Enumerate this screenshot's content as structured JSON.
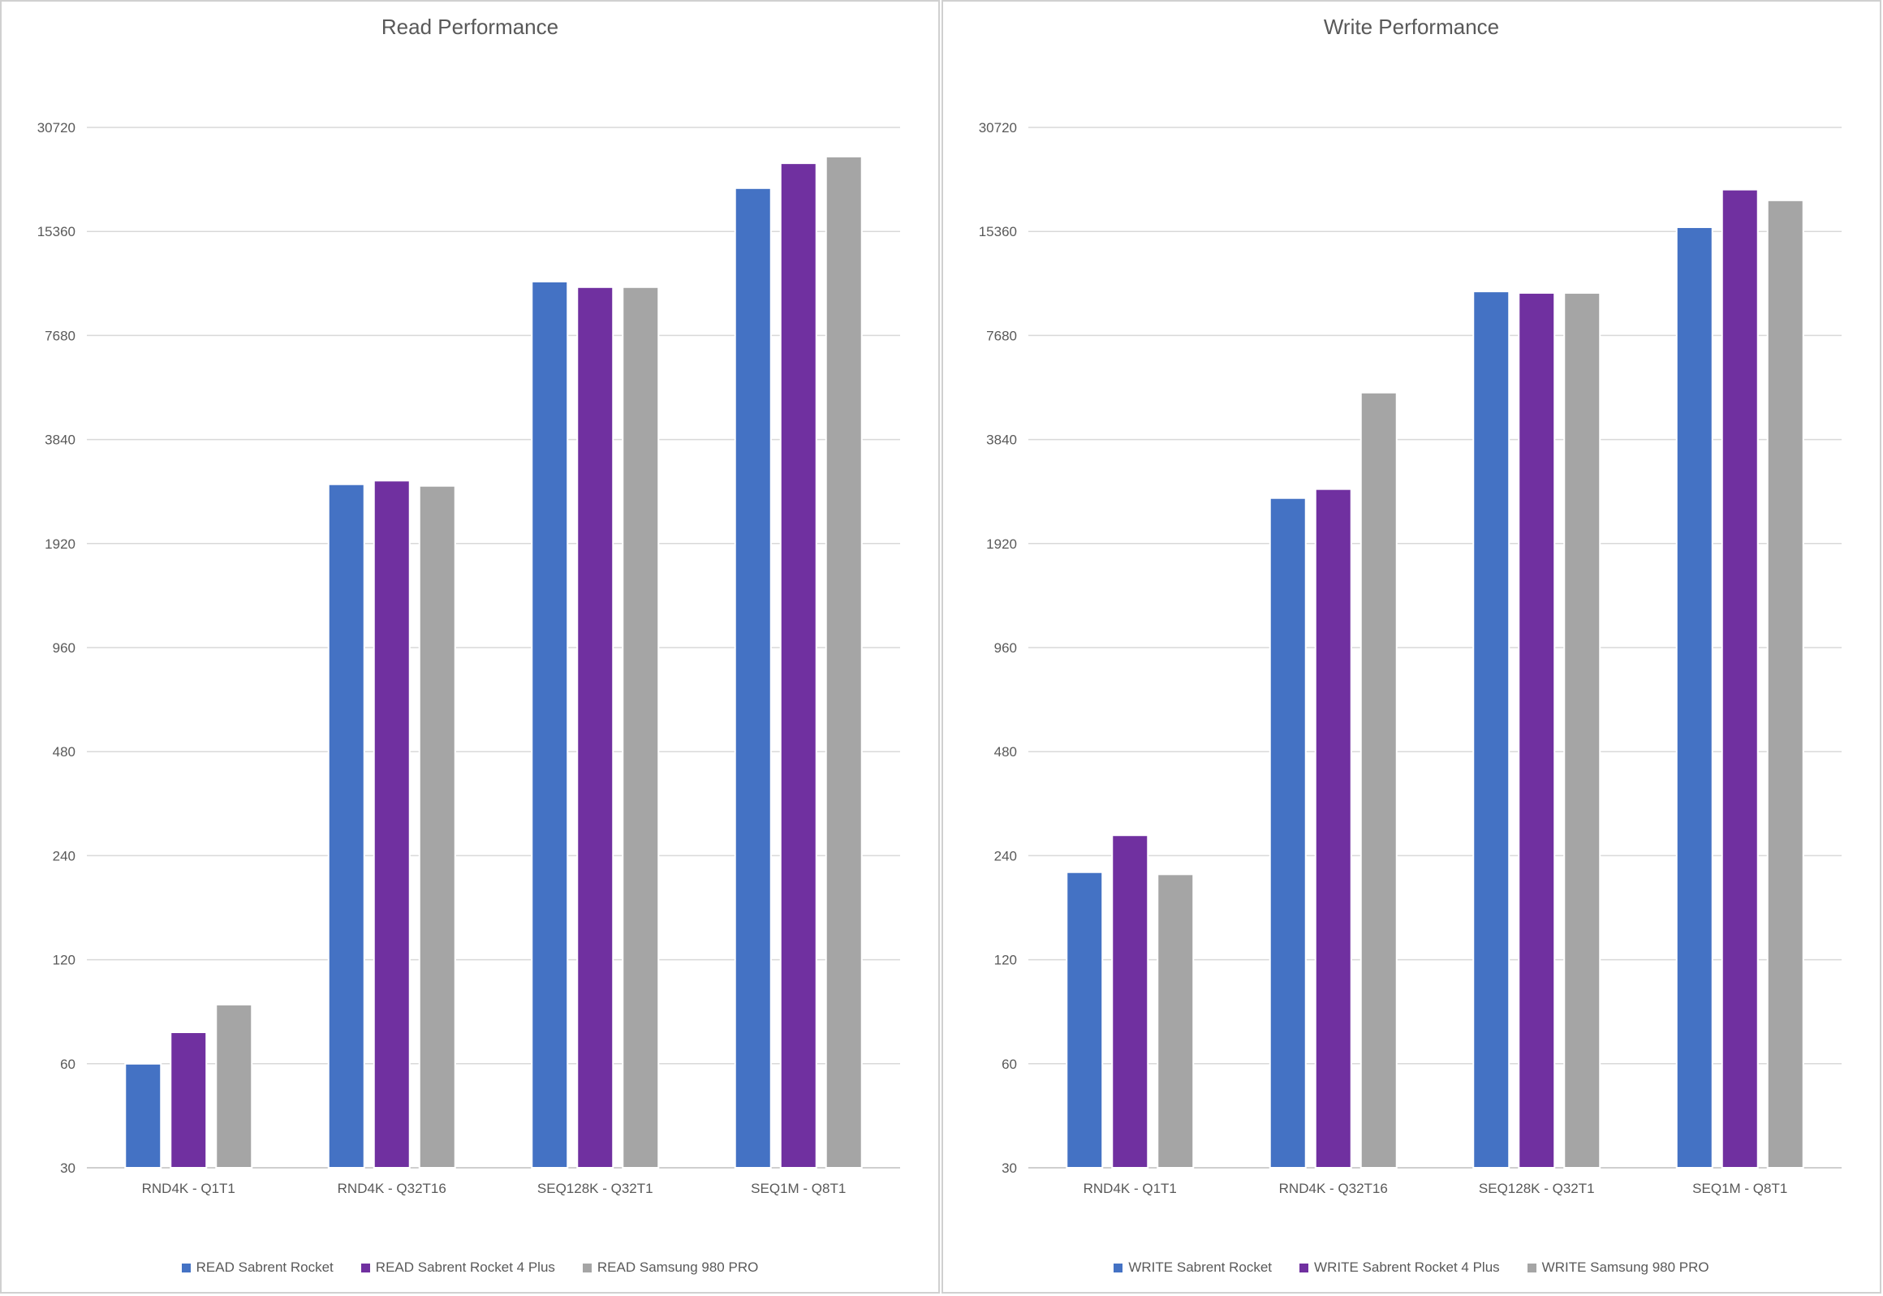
{
  "colors": {
    "blue": "#4472c4",
    "purple": "#7030a0",
    "gray": "#a5a5a5"
  },
  "chart_data": [
    {
      "type": "bar",
      "title": "Read Performance",
      "y_scale": "log2",
      "ylim": [
        30,
        30720
      ],
      "y_ticks": [
        "30720",
        "15360",
        "7680",
        "3840",
        "1920",
        "960",
        "480",
        "240",
        "120",
        "60",
        "30"
      ],
      "categories": [
        "RND4K - Q1T1",
        "RND4K - Q32T16",
        "SEQ128K - Q32T1",
        "SEQ1M - Q8T1"
      ],
      "series": [
        {
          "name": "READ Sabrent Rocket",
          "color": "#4472c4",
          "values": [
            60,
            2850,
            11000,
            20500
          ]
        },
        {
          "name": "READ Sabrent Rocket 4 Plus",
          "color": "#7030a0",
          "values": [
            74,
            2920,
            10600,
            24200
          ]
        },
        {
          "name": "READ Samsung 980 PRO",
          "color": "#a5a5a5",
          "values": [
            89,
            2820,
            10600,
            25300
          ]
        }
      ]
    },
    {
      "type": "bar",
      "title": "Write Performance",
      "y_scale": "log2",
      "ylim": [
        30,
        30720
      ],
      "y_ticks": [
        "30720",
        "15360",
        "7680",
        "3840",
        "1920",
        "960",
        "480",
        "240",
        "120",
        "60",
        "30"
      ],
      "categories": [
        "RND4K - Q1T1",
        "RND4K - Q32T16",
        "SEQ128K - Q32T1",
        "SEQ1M - Q8T1"
      ],
      "series": [
        {
          "name": "WRITE Sabrent Rocket",
          "color": "#4472c4",
          "values": [
            215,
            2600,
            10300,
            15800
          ]
        },
        {
          "name": "WRITE Sabrent Rocket 4 Plus",
          "color": "#7030a0",
          "values": [
            275,
            2760,
            10200,
            20300
          ]
        },
        {
          "name": "WRITE Samsung 980 PRO",
          "color": "#a5a5a5",
          "values": [
            212,
            5250,
            10200,
            18900
          ]
        }
      ]
    }
  ]
}
